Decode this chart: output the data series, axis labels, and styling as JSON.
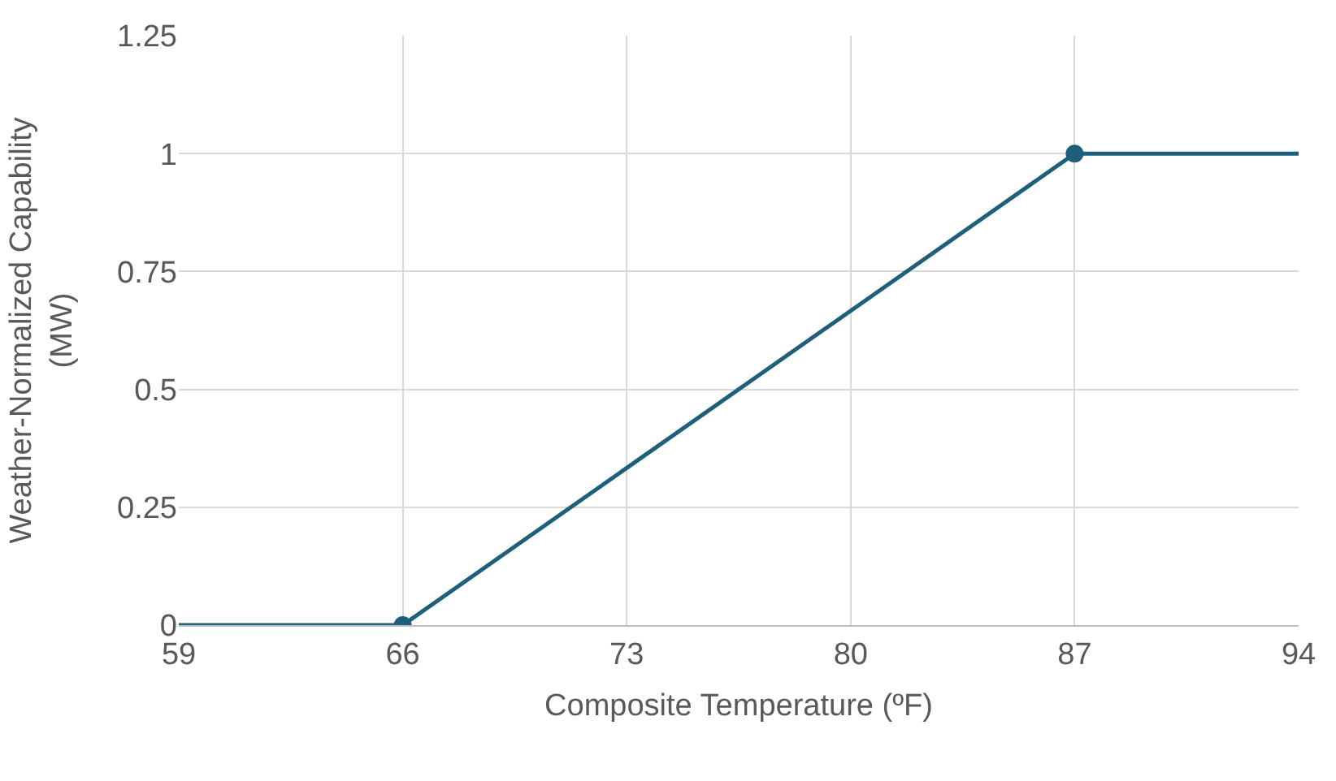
{
  "chart_data": {
    "type": "line",
    "xlabel": "Composite Temperature (ºF)",
    "ylabel": "Weather-Normalized Capability\n(MW)",
    "series": [
      {
        "color": "#1f5f7b",
        "x": [
          59,
          66,
          87,
          94
        ],
        "values": [
          0,
          0,
          1,
          1
        ],
        "marker": "none"
      },
      {
        "type": "scatter",
        "color": "#1f5f7b",
        "x": [
          66,
          87
        ],
        "values": [
          0,
          1
        ],
        "marker": "circle"
      }
    ],
    "xlim": [
      59,
      94
    ],
    "xticks": [
      59,
      66,
      73,
      80,
      87,
      94
    ],
    "ylim": [
      0,
      1.25
    ],
    "yticks": [
      0,
      0.25,
      0.5,
      0.75,
      1,
      1.25
    ],
    "grid": true
  }
}
